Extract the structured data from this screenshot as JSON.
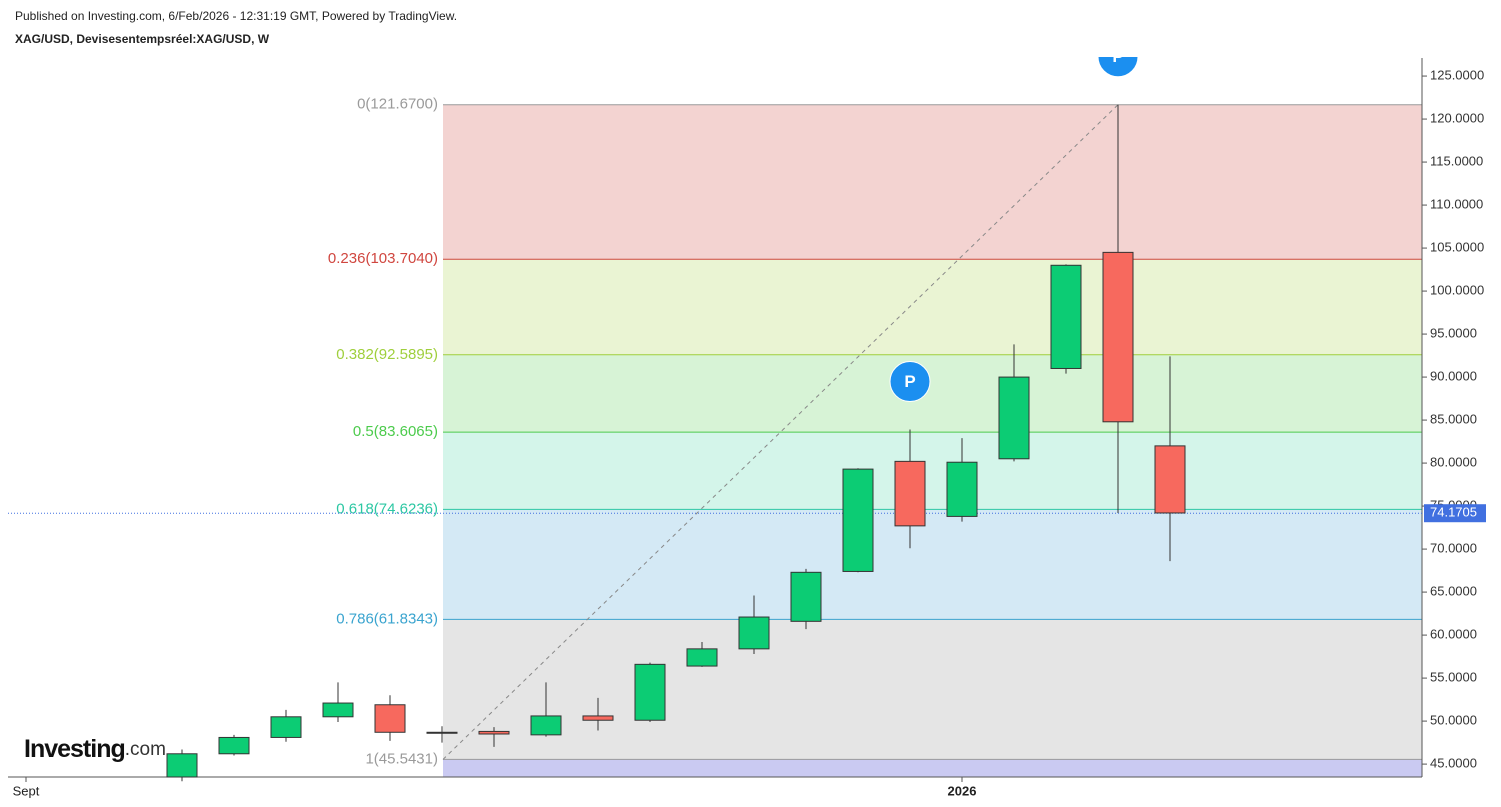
{
  "chart_data": {
    "type": "candlestick",
    "header": "Published on Investing.com, 6/Feb/2026 - 12:31:19 GMT, Powered by TradingView.",
    "title": "XAG/USD, Devisesentempsréel:XAG/USD, W",
    "logo": "Investing",
    "logo_suffix": ".com",
    "categories": [
      "Sept",
      null,
      null,
      null,
      null,
      null,
      null,
      null,
      null,
      null,
      null,
      null,
      null,
      null,
      null,
      null,
      null,
      null,
      "2026",
      null,
      null,
      null,
      null
    ],
    "open": [
      null,
      null,
      null,
      43.5,
      46.2,
      48.1,
      50.5,
      51.9,
      48.6,
      48.8,
      48.4,
      50.6,
      50.1,
      56.4,
      58.4,
      61.6,
      67.4,
      80.2,
      73.8,
      80.5,
      91.0,
      104.5,
      82.0
    ],
    "high": [
      null,
      null,
      null,
      46.7,
      48.4,
      51.3,
      54.5,
      53.0,
      49.4,
      49.3,
      54.5,
      52.7,
      56.8,
      59.2,
      64.6,
      67.7,
      79.4,
      83.9,
      82.9,
      93.8,
      103.1,
      121.67,
      92.4
    ],
    "low": [
      null,
      null,
      null,
      43.0,
      46.0,
      47.6,
      49.9,
      47.7,
      47.5,
      47.0,
      48.2,
      48.9,
      49.9,
      56.3,
      57.8,
      60.7,
      67.3,
      70.1,
      73.2,
      80.2,
      90.4,
      74.2,
      68.6
    ],
    "close": [
      null,
      null,
      null,
      46.2,
      48.1,
      50.5,
      52.1,
      48.7,
      48.7,
      48.5,
      50.6,
      50.1,
      56.6,
      58.4,
      62.1,
      67.3,
      79.3,
      72.7,
      80.1,
      90.0,
      103.0,
      84.8,
      74.2
    ],
    "up_color": "#0ccc74",
    "down_color": "#f7695e",
    "last_price": 74.1705,
    "last_price_color": "#4170e0",
    "fib_levels": [
      {
        "label": "0(121.6700)",
        "level": 121.67,
        "color": "#9a9a9a",
        "fill": "#f3d3d1"
      },
      {
        "label": "0.236(103.7040)",
        "level": 103.704,
        "color": "#d0463f",
        "fill": "#eaf4d3"
      },
      {
        "label": "0.382(92.5895)",
        "level": 92.5895,
        "color": "#9fcf3c",
        "fill": "#d7f3d6"
      },
      {
        "label": "0.5(83.6065)",
        "level": 83.6065,
        "color": "#4ccb4c",
        "fill": "#d4f5ea"
      },
      {
        "label": "0.618(74.6236)",
        "level": 74.6236,
        "color": "#2cc7a3",
        "fill": "#d4e9f5"
      },
      {
        "label": "0.786(61.8343)",
        "level": 61.8343,
        "color": "#3aa4cf",
        "fill": "#e5e5e5"
      },
      {
        "label": "1(45.5431)",
        "level": 45.5431,
        "color": "#9a9a9a",
        "fill": "#cacaf2"
      }
    ],
    "events": [
      {
        "category": 17,
        "label": "P"
      },
      {
        "category": 21,
        "label": "P"
      }
    ],
    "ylim": [
      43.5,
      127.1
    ],
    "yticks": [
      {
        "value": 45,
        "label": "45.0000"
      },
      {
        "value": 50,
        "label": "50.0000"
      },
      {
        "value": 55,
        "label": "55.0000"
      },
      {
        "value": 60,
        "label": "60.0000"
      },
      {
        "value": 65,
        "label": "65.0000"
      },
      {
        "value": 70,
        "label": "70.0000"
      },
      {
        "value": 75,
        "label": "75.0000"
      },
      {
        "value": 80,
        "label": "80.0000"
      },
      {
        "value": 85,
        "label": "85.0000"
      },
      {
        "value": 90,
        "label": "90.0000"
      },
      {
        "value": 95,
        "label": "95.0000"
      },
      {
        "value": 100,
        "label": "100.0000"
      },
      {
        "value": 105,
        "label": "105.0000"
      },
      {
        "value": 110,
        "label": "110.0000"
      },
      {
        "value": 115,
        "label": "115.0000"
      },
      {
        "value": 120,
        "label": "120.0000"
      },
      {
        "value": 125,
        "label": "125.0000"
      }
    ]
  }
}
